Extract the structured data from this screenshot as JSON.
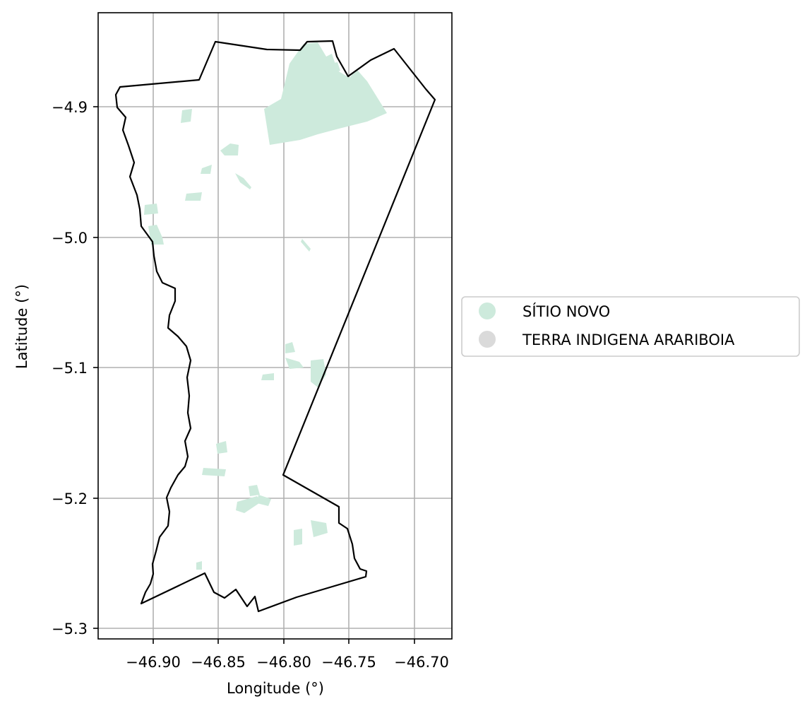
{
  "map": {
    "xlabel": "Longitude (°)",
    "ylabel": "Latitude (°)",
    "x_ticks": [
      "−46.90",
      "−46.85",
      "−46.80",
      "−46.75",
      "−46.70"
    ],
    "y_ticks": [
      "−4.9",
      "−5.0",
      "−5.1",
      "−5.2",
      "−5.3"
    ],
    "grid": true,
    "legend_placement": "center-left outside right",
    "legend": [
      {
        "label": "SÍTIO NOVO",
        "color": "#cdeadc"
      },
      {
        "label": "TERRA INDIGENA ARARIBOIA",
        "color": "#dadada"
      }
    ],
    "boundary_color": "#000000",
    "polygon_fill_color": "#cdeadc"
  }
}
